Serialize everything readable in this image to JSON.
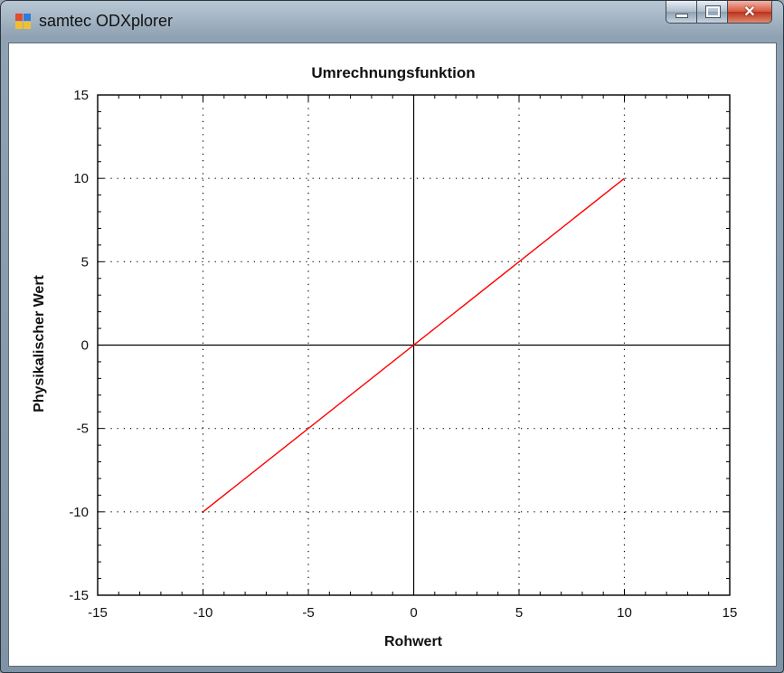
{
  "window": {
    "title": "samtec ODXplorer",
    "icon_name": "app-icon",
    "buttons": {
      "minimize": "minimize-icon",
      "maximize": "maximize-icon",
      "close": "close-icon"
    }
  },
  "chart_data": {
    "type": "line",
    "title": "Umrechnungsfunktion",
    "xlabel": "Rohwert",
    "ylabel": "Physikalischer Wert",
    "xlim": [
      -15,
      15
    ],
    "ylim": [
      -15,
      15
    ],
    "xticks": [
      -15,
      -10,
      -5,
      0,
      5,
      10,
      15
    ],
    "yticks": [
      -15,
      -10,
      -5,
      0,
      5,
      10,
      15
    ],
    "xtick_labels": [
      "-15",
      "-10",
      "-5",
      "0",
      "5",
      "10",
      "15"
    ],
    "ytick_labels": [
      "-15",
      "-10",
      "-5",
      "0",
      "5",
      "10",
      "15"
    ],
    "grid": true,
    "grid_style": "dotted",
    "series": [
      {
        "x": [
          -10,
          10
        ],
        "y": [
          -10,
          10
        ],
        "color": "#ff0000"
      }
    ]
  }
}
